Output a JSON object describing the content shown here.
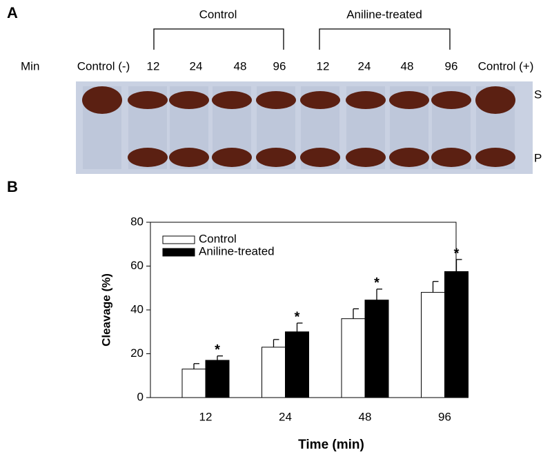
{
  "gel": {
    "panel_label": "A",
    "row_label": "Min",
    "groups": [
      "Control",
      "Aniline-treated"
    ],
    "lanes": [
      "Control (-)",
      "12",
      "24",
      "48",
      "96",
      "12",
      "24",
      "48",
      "96",
      "Control (+)"
    ],
    "band_labels": [
      "S",
      "P"
    ]
  },
  "chart_data": {
    "type": "bar",
    "panel_label": "B",
    "x_label": "Time (min)",
    "y_label": "Cleavage (%)",
    "categories": [
      "12",
      "24",
      "48",
      "96"
    ],
    "series": [
      {
        "name": "Control",
        "color": "#ffffff",
        "values": [
          13,
          23,
          36,
          48
        ],
        "errors": [
          2.5,
          3.5,
          4.5,
          5
        ]
      },
      {
        "name": "Aniline-treated",
        "color": "#000000",
        "values": [
          17,
          30,
          44.5,
          57.5
        ],
        "errors": [
          2,
          4,
          5,
          5.5
        ]
      }
    ],
    "annotations": [
      "*",
      "*",
      "*",
      "*"
    ],
    "ylim": [
      0,
      80
    ],
    "yticks": [
      0,
      20,
      40,
      60,
      80
    ],
    "grid": false,
    "legend": "upper left"
  }
}
